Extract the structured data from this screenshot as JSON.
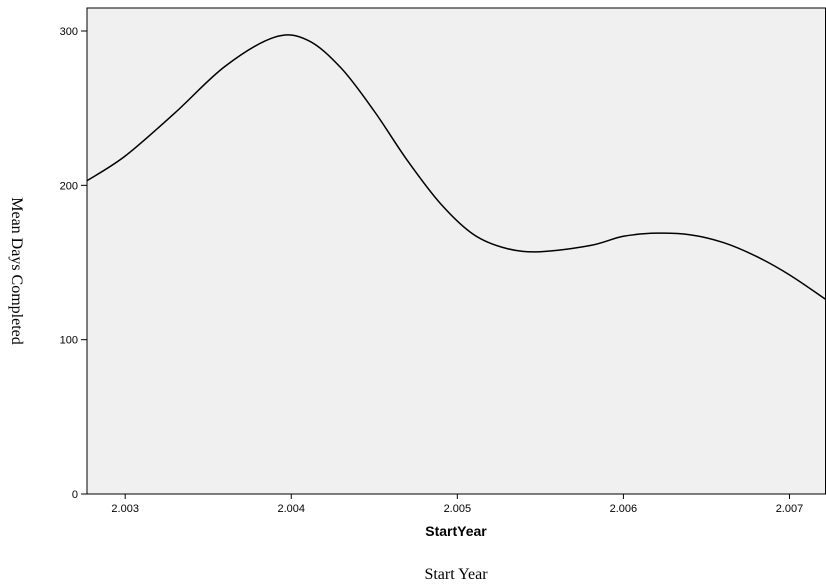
{
  "chart_data": {
    "type": "line",
    "xlabel": "StartYear",
    "outer_xlabel": "Start Year",
    "ylabel": "Mean Days Completed",
    "xlim": [
      2.00277,
      2.00722
    ],
    "ylim": [
      0,
      300
    ],
    "x_ticks": [
      2.003,
      2.004,
      2.005,
      2.006,
      2.007
    ],
    "x_tick_labels": [
      "2.003",
      "2.004",
      "2.005",
      "2.006",
      "2.007"
    ],
    "y_ticks": [
      0,
      100,
      200,
      300
    ],
    "y_tick_labels": [
      "0",
      "100",
      "200",
      "300"
    ],
    "grid": false,
    "series": [
      {
        "x": [
          2.00277,
          2.003,
          2.0033,
          2.0036,
          2.0039,
          2.0041,
          2.0043,
          2.0045,
          2.0047,
          2.0049,
          2.0051,
          2.0053,
          2.0055,
          2.0058,
          2.006,
          2.0062,
          2.0064,
          2.0066,
          2.0068,
          2.007,
          2.00722
        ],
        "y": [
          203,
          219,
          247,
          277,
          296,
          294,
          276,
          248,
          216,
          188,
          168,
          159,
          157,
          161,
          167,
          169,
          168,
          163,
          154,
          142,
          126
        ]
      }
    ],
    "colors": {
      "plot_background": "#f0f0f0",
      "line": "#000000",
      "frame": "#000000"
    }
  }
}
